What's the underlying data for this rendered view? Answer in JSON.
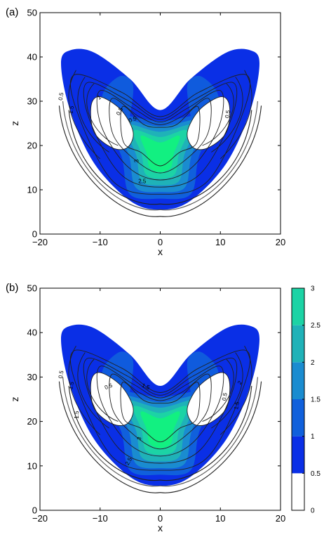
{
  "chart_data": [
    {
      "type": "contour",
      "panel_label": "(a)",
      "xlabel": "x",
      "ylabel": "z",
      "xlim": [
        -20,
        20
      ],
      "ylim": [
        0,
        50
      ],
      "xticks": [
        "-20",
        "-10",
        "0",
        "10",
        "20"
      ],
      "yticks": [
        "0",
        "10",
        "20",
        "30",
        "40",
        "50"
      ],
      "levels": [
        0,
        0.5,
        1,
        1.5,
        2,
        2.5,
        3
      ],
      "contour_labels": [
        "0.5",
        "1.5",
        "0.5",
        "1",
        "0.5",
        "3",
        "2.5",
        "0.5"
      ],
      "wing_peak_z": 41,
      "center_peak_value": 3,
      "center_peak_location": [
        0,
        16
      ]
    },
    {
      "type": "contour",
      "panel_label": "(b)",
      "xlabel": "x",
      "ylabel": "z",
      "xlim": [
        -20,
        20
      ],
      "ylim": [
        0,
        50
      ],
      "xticks": [
        "-20",
        "-10",
        "0",
        "10",
        "20"
      ],
      "yticks": [
        "0",
        "10",
        "20",
        "30",
        "40",
        "50"
      ],
      "levels": [
        0,
        0.5,
        1,
        1.5,
        2,
        2.5,
        3
      ],
      "contour_labels": [
        "0.5",
        "1.5",
        "1.5",
        "0.5",
        "1.5",
        "3",
        "2.5",
        "2",
        "0.5",
        "1.5"
      ],
      "wing_peak_z": 41,
      "center_peak_value": 3,
      "center_peak_location": [
        0,
        16
      ]
    }
  ],
  "colorbar": {
    "ticks": [
      "0",
      "0.5",
      "1",
      "1.5",
      "2",
      "2.5",
      "3"
    ],
    "colors": [
      "#ffffff",
      "#0a2fe6",
      "#1060dc",
      "#1a8cd0",
      "#1fb2b8",
      "#1cd3a5",
      "#12f081"
    ]
  }
}
